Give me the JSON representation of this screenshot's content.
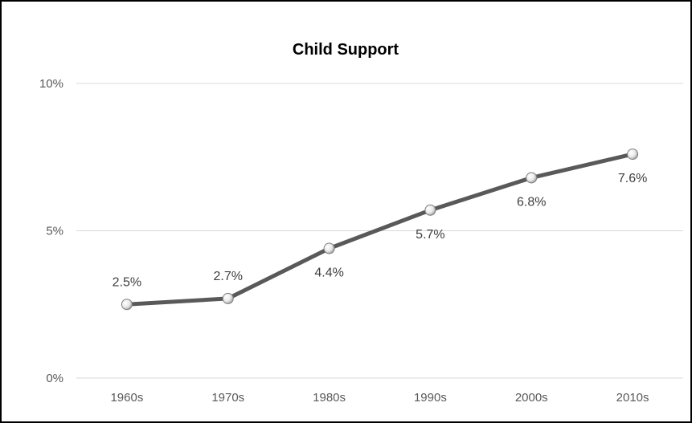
{
  "chart_data": {
    "type": "line",
    "title": "Child Support",
    "categories": [
      "1960s",
      "1970s",
      "1980s",
      "1990s",
      "2000s",
      "2010s"
    ],
    "series": [
      {
        "values": [
          2.5,
          2.7,
          4.4,
          5.7,
          6.8,
          7.6
        ],
        "data_labels": [
          "2.5%",
          "2.7%",
          "4.4%",
          "5.7%",
          "6.8%",
          "7.6%"
        ]
      }
    ],
    "y_ticks": [
      {
        "value": 0,
        "label": "0%"
      },
      {
        "value": 5,
        "label": "5%"
      },
      {
        "value": 10,
        "label": "10%"
      }
    ],
    "ylim": [
      0,
      10
    ],
    "grid": true,
    "legend": "none",
    "colors": {
      "line": "#595959",
      "marker_fill": "#e6e6e6",
      "marker_stroke": "#7f7f7f",
      "grid": "#d9d9d9"
    }
  }
}
